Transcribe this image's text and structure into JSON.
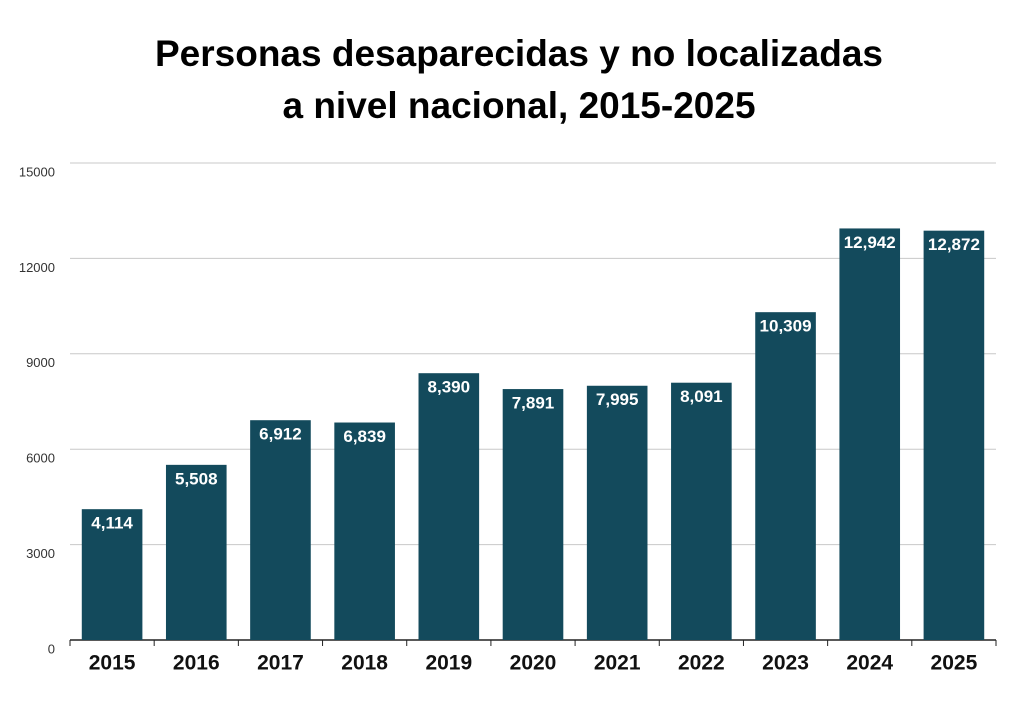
{
  "chart_data": {
    "type": "bar",
    "title": [
      "Personas desaparecidas y no localizadas",
      "a nivel nacional, 2015-2025"
    ],
    "categories": [
      "2015",
      "2016",
      "2017",
      "2018",
      "2019",
      "2020",
      "2021",
      "2022",
      "2023",
      "2024",
      "2025"
    ],
    "values": [
      4114,
      5508,
      6912,
      6839,
      8390,
      7891,
      7995,
      8091,
      10309,
      12942,
      12872
    ],
    "value_labels": [
      "4,114",
      "5,508",
      "6,912",
      "6,839",
      "8,390",
      "7,891",
      "7,995",
      "8,091",
      "10,309",
      "12,942",
      "12,872"
    ],
    "color": "#134a5c",
    "ylim": [
      0,
      15000
    ],
    "yticks": [
      0,
      3000,
      6000,
      9000,
      12000,
      15000
    ],
    "grid": true
  }
}
